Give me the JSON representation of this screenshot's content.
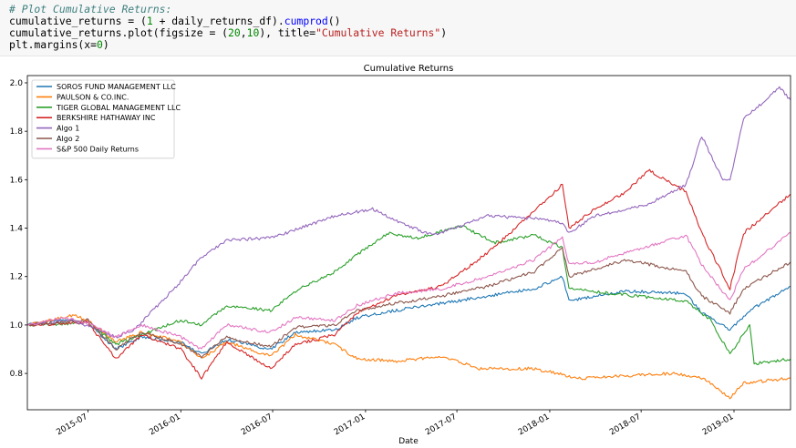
{
  "code": {
    "comment": "# Plot Cumulative Returns:",
    "line2": {
      "a": "cumulative_returns = (",
      "num": "1",
      "b": " + daily_returns_df).",
      "fn": "cumprod",
      "c": "()"
    },
    "line3": {
      "a": "cumulative_returns.plot(figsize = (",
      "n1": "20",
      "sep": ",",
      "n2": "10",
      "b": "), title=",
      "str": "\"Cumulative Returns\"",
      "c": ")"
    },
    "line4": {
      "a": "plt.margins(x=",
      "num": "0",
      "c": ")"
    }
  },
  "chart_data": {
    "type": "line",
    "title": "Cumulative Returns",
    "xlabel": "Date",
    "ylabel": "",
    "x_range": [
      "2015-03-03",
      "2019-04-23"
    ],
    "ylim": [
      0.65,
      2.03
    ],
    "grid": false,
    "legend_position": "top-left",
    "y_ticks": [
      "0.8",
      "1.0",
      "1.2",
      "1.4",
      "1.6",
      "1.8",
      "2.0"
    ],
    "y_tick_values": [
      0.8,
      1.0,
      1.2,
      1.4,
      1.6,
      1.8,
      2.0
    ],
    "x_ticks": [
      "2015-07",
      "2016-01",
      "2016-07",
      "2017-01",
      "2017-07",
      "2018-01",
      "2018-07",
      "2019-01"
    ],
    "x_tick_dates": [
      "2015-07-01",
      "2016-01-01",
      "2016-07-01",
      "2017-01-01",
      "2017-07-01",
      "2018-01-01",
      "2018-07-01",
      "2019-01-01"
    ],
    "series": [
      {
        "name": "SOROS FUND MANAGEMENT LLC",
        "color": "#1f77b4",
        "points": [
          [
            "2015-03-03",
            1.0
          ],
          [
            "2015-05-01",
            1.02
          ],
          [
            "2015-07-01",
            1.01
          ],
          [
            "2015-08-25",
            0.9
          ],
          [
            "2015-10-15",
            0.95
          ],
          [
            "2016-01-01",
            0.93
          ],
          [
            "2016-02-11",
            0.88
          ],
          [
            "2016-04-01",
            0.94
          ],
          [
            "2016-06-27",
            0.9
          ],
          [
            "2016-08-15",
            0.97
          ],
          [
            "2016-11-01",
            0.98
          ],
          [
            "2016-12-15",
            1.03
          ],
          [
            "2017-03-01",
            1.06
          ],
          [
            "2017-06-01",
            1.09
          ],
          [
            "2017-09-01",
            1.12
          ],
          [
            "2017-12-01",
            1.15
          ],
          [
            "2018-01-26",
            1.2
          ],
          [
            "2018-02-08",
            1.1
          ],
          [
            "2018-04-01",
            1.12
          ],
          [
            "2018-06-01",
            1.14
          ],
          [
            "2018-09-28",
            1.13
          ],
          [
            "2018-10-29",
            1.05
          ],
          [
            "2018-12-24",
            0.98
          ],
          [
            "2019-02-01",
            1.06
          ],
          [
            "2019-04-23",
            1.16
          ]
        ]
      },
      {
        "name": "PAULSON & CO.INC.",
        "color": "#ff7f0e",
        "points": [
          [
            "2015-03-03",
            1.0
          ],
          [
            "2015-06-01",
            1.04
          ],
          [
            "2015-07-01",
            1.02
          ],
          [
            "2015-08-25",
            0.93
          ],
          [
            "2015-10-15",
            0.97
          ],
          [
            "2016-01-01",
            0.93
          ],
          [
            "2016-02-11",
            0.86
          ],
          [
            "2016-04-01",
            0.93
          ],
          [
            "2016-06-27",
            0.87
          ],
          [
            "2016-08-15",
            0.96
          ],
          [
            "2016-11-01",
            0.92
          ],
          [
            "2016-12-15",
            0.86
          ],
          [
            "2017-03-01",
            0.85
          ],
          [
            "2017-06-01",
            0.87
          ],
          [
            "2017-08-15",
            0.82
          ],
          [
            "2017-12-01",
            0.82
          ],
          [
            "2018-03-01",
            0.78
          ],
          [
            "2018-06-01",
            0.79
          ],
          [
            "2018-09-01",
            0.8
          ],
          [
            "2018-11-01",
            0.78
          ],
          [
            "2018-12-24",
            0.7
          ],
          [
            "2019-01-20",
            0.76
          ],
          [
            "2019-04-23",
            0.78
          ]
        ]
      },
      {
        "name": "TIGER GLOBAL MANAGEMENT LLC",
        "color": "#2ca02c",
        "points": [
          [
            "2015-03-03",
            1.0
          ],
          [
            "2015-07-01",
            1.01
          ],
          [
            "2015-08-25",
            0.92
          ],
          [
            "2015-10-15",
            0.96
          ],
          [
            "2016-01-01",
            1.02
          ],
          [
            "2016-02-11",
            1.0
          ],
          [
            "2016-04-01",
            1.08
          ],
          [
            "2016-06-27",
            1.06
          ],
          [
            "2016-08-15",
            1.14
          ],
          [
            "2016-11-01",
            1.22
          ],
          [
            "2016-12-15",
            1.29
          ],
          [
            "2017-02-15",
            1.38
          ],
          [
            "2017-04-15",
            1.36
          ],
          [
            "2017-07-10",
            1.41
          ],
          [
            "2017-09-15",
            1.34
          ],
          [
            "2017-12-01",
            1.37
          ],
          [
            "2018-01-26",
            1.32
          ],
          [
            "2018-02-08",
            1.15
          ],
          [
            "2018-05-01",
            1.13
          ],
          [
            "2018-09-28",
            1.1
          ],
          [
            "2018-11-15",
            1.02
          ],
          [
            "2018-12-24",
            0.88
          ],
          [
            "2019-02-01",
            1.0
          ],
          [
            "2019-02-10",
            0.84
          ],
          [
            "2019-04-23",
            0.86
          ]
        ]
      },
      {
        "name": "BERKSHIRE HATHAWAY INC",
        "color": "#d62728",
        "points": [
          [
            "2015-03-03",
            1.0
          ],
          [
            "2015-07-01",
            1.01
          ],
          [
            "2015-08-25",
            0.86
          ],
          [
            "2015-10-15",
            0.96
          ],
          [
            "2016-01-01",
            0.9
          ],
          [
            "2016-02-11",
            0.78
          ],
          [
            "2016-04-01",
            0.93
          ],
          [
            "2016-06-27",
            0.82
          ],
          [
            "2016-08-15",
            0.92
          ],
          [
            "2016-11-01",
            0.96
          ],
          [
            "2016-12-15",
            1.05
          ],
          [
            "2017-03-01",
            1.12
          ],
          [
            "2017-06-01",
            1.16
          ],
          [
            "2017-09-01",
            1.3
          ],
          [
            "2017-12-01",
            1.47
          ],
          [
            "2018-01-26",
            1.58
          ],
          [
            "2018-02-08",
            1.4
          ],
          [
            "2018-04-01",
            1.48
          ],
          [
            "2018-06-01",
            1.55
          ],
          [
            "2018-07-15",
            1.64
          ],
          [
            "2018-09-28",
            1.55
          ],
          [
            "2018-10-29",
            1.38
          ],
          [
            "2018-12-24",
            1.15
          ],
          [
            "2019-01-20",
            1.38
          ],
          [
            "2019-04-23",
            1.54
          ]
        ]
      },
      {
        "name": "Algo 1",
        "color": "#9467bd",
        "points": [
          [
            "2015-03-03",
            1.0
          ],
          [
            "2015-06-01",
            1.02
          ],
          [
            "2015-08-25",
            0.95
          ],
          [
            "2015-10-01",
            0.98
          ],
          [
            "2016-01-01",
            1.18
          ],
          [
            "2016-02-11",
            1.28
          ],
          [
            "2016-04-01",
            1.35
          ],
          [
            "2016-07-01",
            1.36
          ],
          [
            "2016-11-01",
            1.45
          ],
          [
            "2017-01-15",
            1.48
          ],
          [
            "2017-03-01",
            1.43
          ],
          [
            "2017-05-15",
            1.37
          ],
          [
            "2017-09-01",
            1.45
          ],
          [
            "2017-12-01",
            1.44
          ],
          [
            "2018-01-26",
            1.42
          ],
          [
            "2018-02-08",
            1.38
          ],
          [
            "2018-04-01",
            1.45
          ],
          [
            "2018-07-15",
            1.5
          ],
          [
            "2018-09-28",
            1.58
          ],
          [
            "2018-10-29",
            1.78
          ],
          [
            "2018-12-10",
            1.6
          ],
          [
            "2018-12-24",
            1.6
          ],
          [
            "2019-01-20",
            1.85
          ],
          [
            "2019-04-01",
            1.98
          ],
          [
            "2019-04-23",
            1.93
          ]
        ]
      },
      {
        "name": "Algo 2",
        "color": "#8c564b",
        "points": [
          [
            "2015-03-03",
            1.0
          ],
          [
            "2015-07-01",
            1.02
          ],
          [
            "2015-08-25",
            0.9
          ],
          [
            "2015-10-15",
            0.97
          ],
          [
            "2016-01-01",
            0.92
          ],
          [
            "2016-02-11",
            0.87
          ],
          [
            "2016-04-01",
            0.95
          ],
          [
            "2016-06-27",
            0.91
          ],
          [
            "2016-08-15",
            0.99
          ],
          [
            "2016-11-01",
            1.0
          ],
          [
            "2016-12-15",
            1.06
          ],
          [
            "2017-03-01",
            1.09
          ],
          [
            "2017-06-01",
            1.12
          ],
          [
            "2017-09-01",
            1.16
          ],
          [
            "2017-12-01",
            1.22
          ],
          [
            "2018-01-26",
            1.32
          ],
          [
            "2018-02-08",
            1.2
          ],
          [
            "2018-04-01",
            1.23
          ],
          [
            "2018-06-01",
            1.27
          ],
          [
            "2018-09-28",
            1.22
          ],
          [
            "2018-10-29",
            1.12
          ],
          [
            "2018-12-24",
            1.05
          ],
          [
            "2019-01-20",
            1.15
          ],
          [
            "2019-04-23",
            1.26
          ]
        ]
      },
      {
        "name": "S&P 500 Daily Returns",
        "color": "#e377c2",
        "points": [
          [
            "2015-03-03",
            1.0
          ],
          [
            "2015-05-15",
            1.03
          ],
          [
            "2015-07-01",
            1.01
          ],
          [
            "2015-08-25",
            0.95
          ],
          [
            "2015-10-15",
            1.0
          ],
          [
            "2016-01-01",
            0.95
          ],
          [
            "2016-02-11",
            0.9
          ],
          [
            "2016-04-01",
            1.0
          ],
          [
            "2016-06-27",
            0.97
          ],
          [
            "2016-08-15",
            1.03
          ],
          [
            "2016-11-01",
            1.02
          ],
          [
            "2016-12-15",
            1.08
          ],
          [
            "2017-03-01",
            1.13
          ],
          [
            "2017-06-01",
            1.15
          ],
          [
            "2017-09-01",
            1.2
          ],
          [
            "2017-12-01",
            1.27
          ],
          [
            "2018-01-26",
            1.36
          ],
          [
            "2018-02-08",
            1.25
          ],
          [
            "2018-04-01",
            1.26
          ],
          [
            "2018-06-01",
            1.3
          ],
          [
            "2018-09-28",
            1.37
          ],
          [
            "2018-10-29",
            1.25
          ],
          [
            "2018-12-24",
            1.1
          ],
          [
            "2019-01-20",
            1.23
          ],
          [
            "2019-04-23",
            1.38
          ]
        ]
      }
    ]
  }
}
